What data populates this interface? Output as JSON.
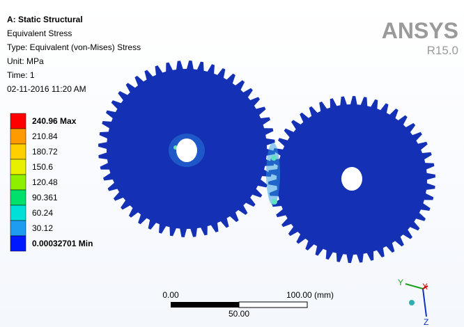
{
  "header": {
    "lines": [
      "A: Static Structural",
      "Equivalent Stress",
      "Type: Equivalent (von-Mises) Stress",
      "Unit: MPa",
      "Time: 1",
      "02-11-2016 11:20 AM"
    ]
  },
  "logo": {
    "brand": "ANSYS",
    "version": "R15.0"
  },
  "legend": {
    "entries": [
      {
        "label": "240.96 Max",
        "color": "#ff0000"
      },
      {
        "label": "210.84",
        "color": "#ff9a00"
      },
      {
        "label": "180.72",
        "color": "#ffd000"
      },
      {
        "label": "150.6",
        "color": "#e8f000"
      },
      {
        "label": "120.48",
        "color": "#8ef000"
      },
      {
        "label": "90.361",
        "color": "#00e06a"
      },
      {
        "label": "60.24",
        "color": "#00e0d8"
      },
      {
        "label": "30.12",
        "color": "#1e9cf0"
      },
      {
        "label": "0.00032701 Min",
        "color": "#0018ff"
      }
    ]
  },
  "scale_bar": {
    "start": "0.00",
    "end": "100.00 (mm)",
    "middle": "50.00"
  },
  "triad": {
    "y": "Y",
    "x": "X",
    "z": "Z"
  }
}
